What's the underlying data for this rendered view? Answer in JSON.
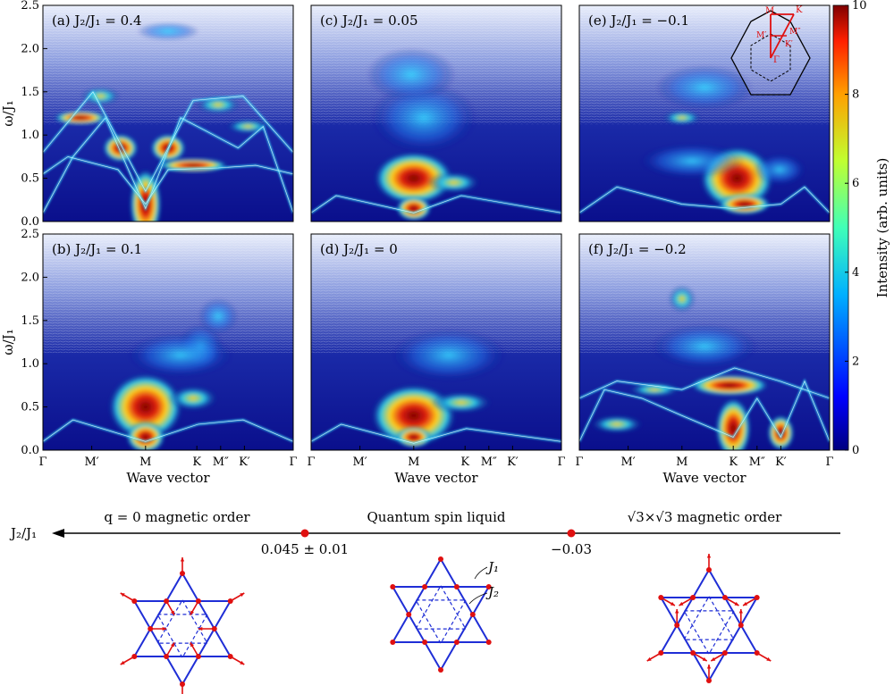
{
  "colors": {
    "map_background": "#0a0f8c",
    "bright_band": "#8b0000",
    "lattice": "#1f2ed6",
    "spin": "#e01010",
    "bz_arrow": "#e01010"
  },
  "shared": {
    "y_axis_label": "ω/J₁",
    "x_axis_label": "Wave vector",
    "y_ticks": [
      "0.0",
      "0.5",
      "1.0",
      "1.5",
      "2.0",
      "2.5"
    ],
    "x_ticks": [
      "Γ",
      "M′",
      "M",
      "K",
      "M″",
      "K′",
      "Γ"
    ]
  },
  "panels": [
    {
      "id": "a",
      "label": "(a) J₂/J₁ = 0.4"
    },
    {
      "id": "c",
      "label": "(c) J₂/J₁ = 0.05"
    },
    {
      "id": "e",
      "label": "(e) J₂/J₁ = −0.1"
    },
    {
      "id": "b",
      "label": "(b) J₂/J₁ = 0.1"
    },
    {
      "id": "d",
      "label": "(d) J₂/J₁ = 0"
    },
    {
      "id": "f",
      "label": "(f) J₂/J₁ = −0.2"
    }
  ],
  "brillouin_zone": {
    "points": [
      "M",
      "K",
      "M′",
      "M″",
      "K′",
      "Γ"
    ]
  },
  "colorbar": {
    "label": "Intensity (arb. units)",
    "ticks": [
      "0",
      "2",
      "4",
      "6",
      "8",
      "10"
    ],
    "range": [
      0,
      10
    ]
  },
  "phase_diagram": {
    "axis_label": "J₂/J₁",
    "regions": [
      "q = 0 magnetic order",
      "Quantum spin liquid",
      "√3×√3 magnetic order"
    ],
    "boundaries": [
      "0.045 ± 0.01",
      "−0.03"
    ],
    "lattice_labels": [
      "J₁",
      "J₂"
    ]
  },
  "chart_data": {
    "type": "heatmap",
    "x_path": [
      "Γ",
      "M′",
      "M",
      "K",
      "M″",
      "K′",
      "Γ"
    ],
    "ylabel": "ω/J₁",
    "xlabel": "Wave vector",
    "ylim": [
      0,
      2.5
    ],
    "intensity_range": [
      0,
      10
    ],
    "panels": [
      {
        "id": "a",
        "J2_over_J1": 0.4,
        "feature": "gapless dispersive magnon bands, minimum at M near 0.15"
      },
      {
        "id": "b",
        "J2_over_J1": 0.1,
        "feature": "broad continuum with intense weight near M around 0.1–0.7"
      },
      {
        "id": "c",
        "J2_over_J1": 0.05,
        "feature": "broad continuum, intense weight near M around 0.1–0.7"
      },
      {
        "id": "d",
        "J2_over_J1": 0,
        "feature": "broad continuum, intense weight near M around 0.1–0.6"
      },
      {
        "id": "e",
        "J2_over_J1": -0.1,
        "feature": "continuum with intense weight near K around 0.1–0.7"
      },
      {
        "id": "f",
        "J2_over_J1": -0.2,
        "feature": "dispersive bands, minima at K and K′ near 0.15"
      }
    ]
  }
}
